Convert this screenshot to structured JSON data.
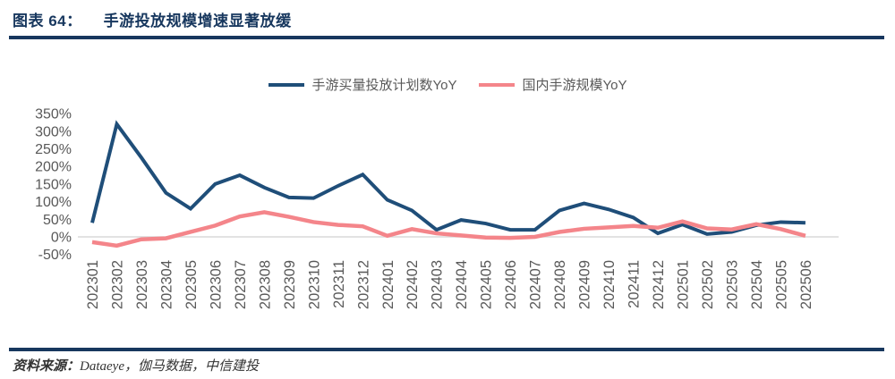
{
  "header": {
    "chart_no": "图表 64：",
    "title": "手游投放规模增速显著放缓"
  },
  "legend": {
    "item1": "手游买量投放计划数YoY",
    "item2": "国内手游规模YoY"
  },
  "footer": {
    "source_label": "资料来源：",
    "source_text": "Dataeye，伽马数据，中信建投"
  },
  "colors": {
    "navy_series": "#1F4E79",
    "pink_series": "#F4858A",
    "title_navy": "#17375E",
    "tick_gray": "#595959",
    "grid_gray": "#D9D9D9"
  },
  "chart_data": {
    "type": "line",
    "title": "手游投放规模增速显著放缓",
    "categories": [
      "202301",
      "202302",
      "202303",
      "202304",
      "202305",
      "202306",
      "202307",
      "202308",
      "202309",
      "202310",
      "202311",
      "202312",
      "202401",
      "202402",
      "202403",
      "202404",
      "202405",
      "202406",
      "202407",
      "202408",
      "202409",
      "202410",
      "202411",
      "202412",
      "202501",
      "202502",
      "202503",
      "202504",
      "202505",
      "202506"
    ],
    "series": [
      {
        "name": "手游买量投放计划数YoY",
        "color": "#1F4E79",
        "values": [
          40,
          320,
          225,
          125,
          80,
          150,
          175,
          140,
          112,
          110,
          145,
          177,
          105,
          75,
          20,
          48,
          38,
          20,
          20,
          75,
          95,
          78,
          55,
          10,
          35,
          8,
          14,
          33,
          42,
          40
        ]
      },
      {
        "name": "国内手游规模YoY",
        "color": "#F4858A",
        "values": [
          -15,
          -25,
          -7,
          -4,
          14,
          32,
          58,
          70,
          57,
          42,
          34,
          30,
          3,
          22,
          10,
          4,
          -2,
          -3,
          0,
          14,
          23,
          27,
          31,
          26,
          44,
          24,
          21,
          36,
          22,
          3
        ]
      }
    ],
    "y_ticks": [
      350,
      300,
      250,
      200,
      150,
      100,
      50,
      0,
      -50
    ],
    "y_tick_suffix": "%",
    "ylim": [
      -50,
      350
    ],
    "xlabel": "",
    "ylabel": "",
    "grid": "zero-line-only",
    "legend_position": "top-center"
  }
}
